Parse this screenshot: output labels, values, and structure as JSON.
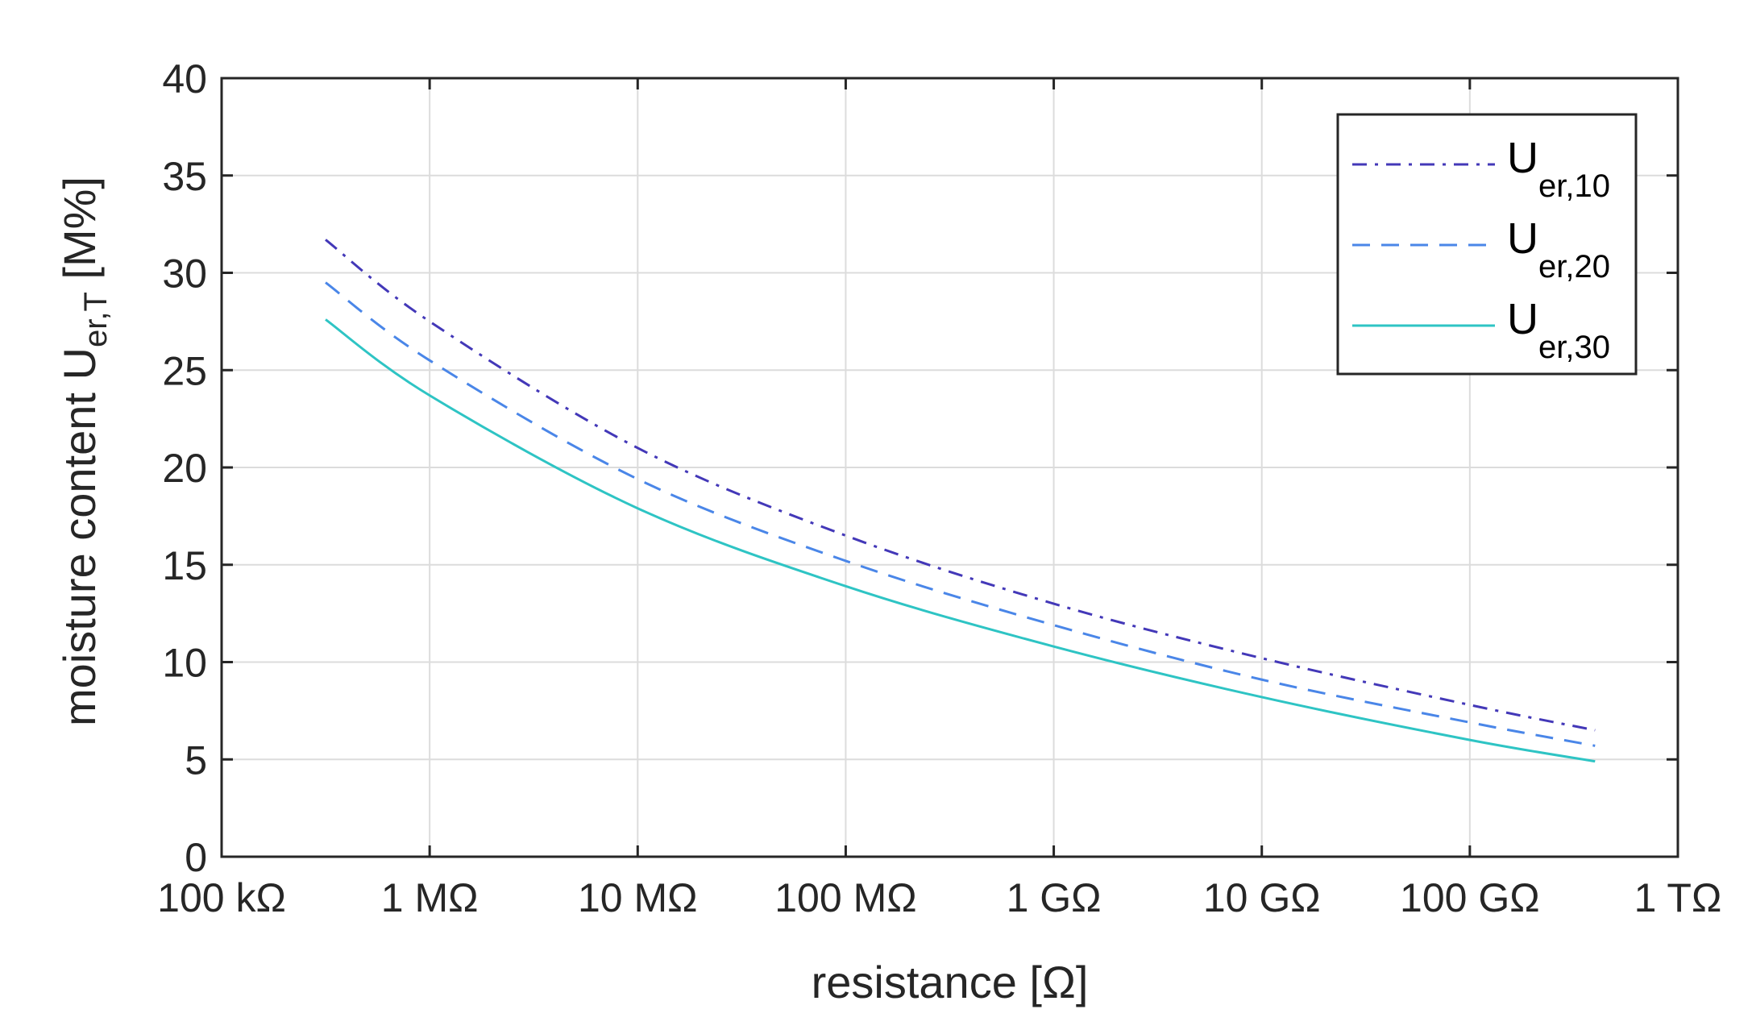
{
  "chart_data": {
    "type": "line",
    "xscale": "log",
    "xlim": [
      100000,
      1000000000000
    ],
    "ylim": [
      0,
      40
    ],
    "grid": true,
    "legend_position": "top-right",
    "xlabel": "resistance [Ω]",
    "ylabel": {
      "main": "moisture content U",
      "sub": "er,T",
      "suffix": " [M%]"
    },
    "x_tick_values": [
      100000,
      1000000,
      10000000,
      100000000,
      1000000000,
      10000000000,
      100000000000,
      1000000000000
    ],
    "x_tick_labels": [
      "100 kΩ",
      "1 MΩ",
      "10 MΩ",
      "100 MΩ",
      "1 GΩ",
      "10 GΩ",
      "100 GΩ",
      "1 TΩ"
    ],
    "y_tick_values": [
      0,
      5,
      10,
      15,
      20,
      25,
      30,
      35,
      40
    ],
    "y_tick_labels": [
      "0",
      "5",
      "10",
      "15",
      "20",
      "25",
      "30",
      "35",
      "40"
    ],
    "x": [
      316000,
      1000000,
      10000000,
      100000000,
      1000000000,
      10000000000,
      100000000000,
      400000000000
    ],
    "series": [
      {
        "name": "U",
        "sub": "er,10",
        "color": "#4338b8",
        "dash": "18,10,4,10",
        "values": [
          31.7,
          27.5,
          21.0,
          16.5,
          13.0,
          10.2,
          7.8,
          6.5
        ]
      },
      {
        "name": "U",
        "sub": "er,20",
        "color": "#4a86e8",
        "dash": "22,14",
        "values": [
          29.5,
          25.5,
          19.4,
          15.2,
          11.9,
          9.1,
          6.9,
          5.7
        ]
      },
      {
        "name": "U",
        "sub": "er,30",
        "color": "#2ec4c4",
        "dash": "",
        "values": [
          27.6,
          23.7,
          17.9,
          13.9,
          10.8,
          8.2,
          6.0,
          4.9
        ]
      }
    ]
  }
}
